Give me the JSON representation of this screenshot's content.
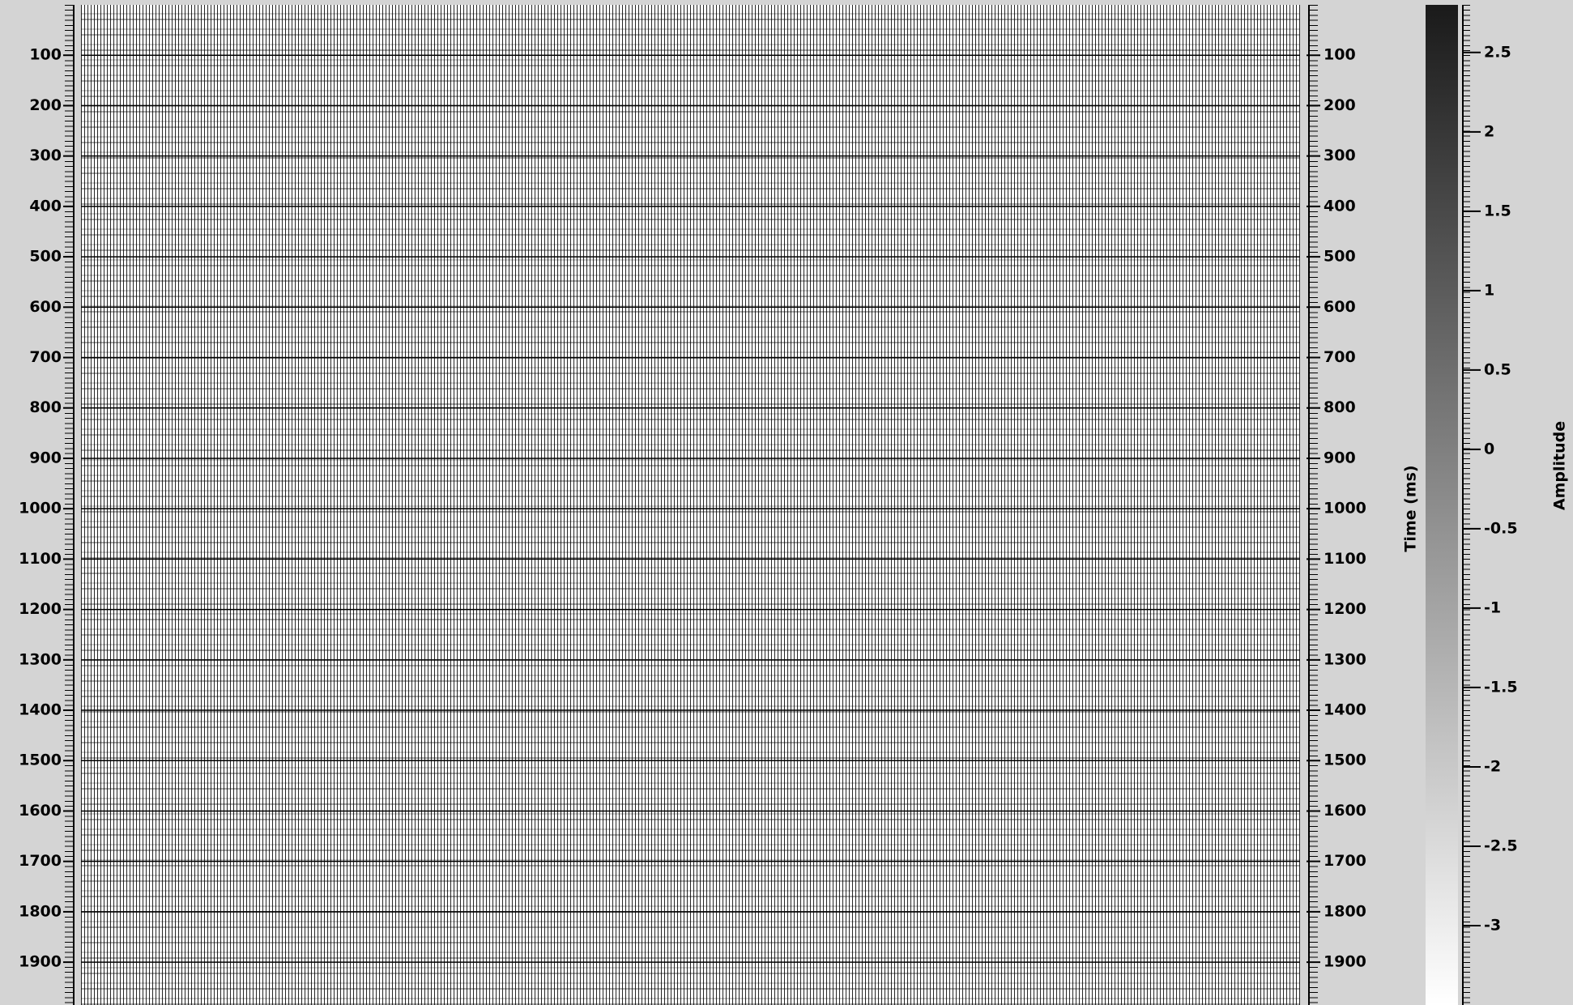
{
  "chart_data": {
    "type": "seismic",
    "ylabel": "Time (ms)",
    "ylim": [
      0,
      1985
    ],
    "yticks": [
      100,
      200,
      300,
      400,
      500,
      600,
      700,
      800,
      900,
      1000,
      1100,
      1200,
      1300,
      1400,
      1500,
      1600,
      1700,
      1800,
      1900
    ],
    "grid": true,
    "colorbar": {
      "label": "Amplitude",
      "lim": [
        -3.5,
        2.8
      ],
      "ticks": [
        2.5,
        2,
        1.5,
        1,
        0.5,
        0,
        -0.5,
        -1,
        -1.5,
        -2,
        -2.5,
        -3
      ],
      "colors": [
        "#ffffff",
        "#1a1a1a"
      ]
    }
  }
}
